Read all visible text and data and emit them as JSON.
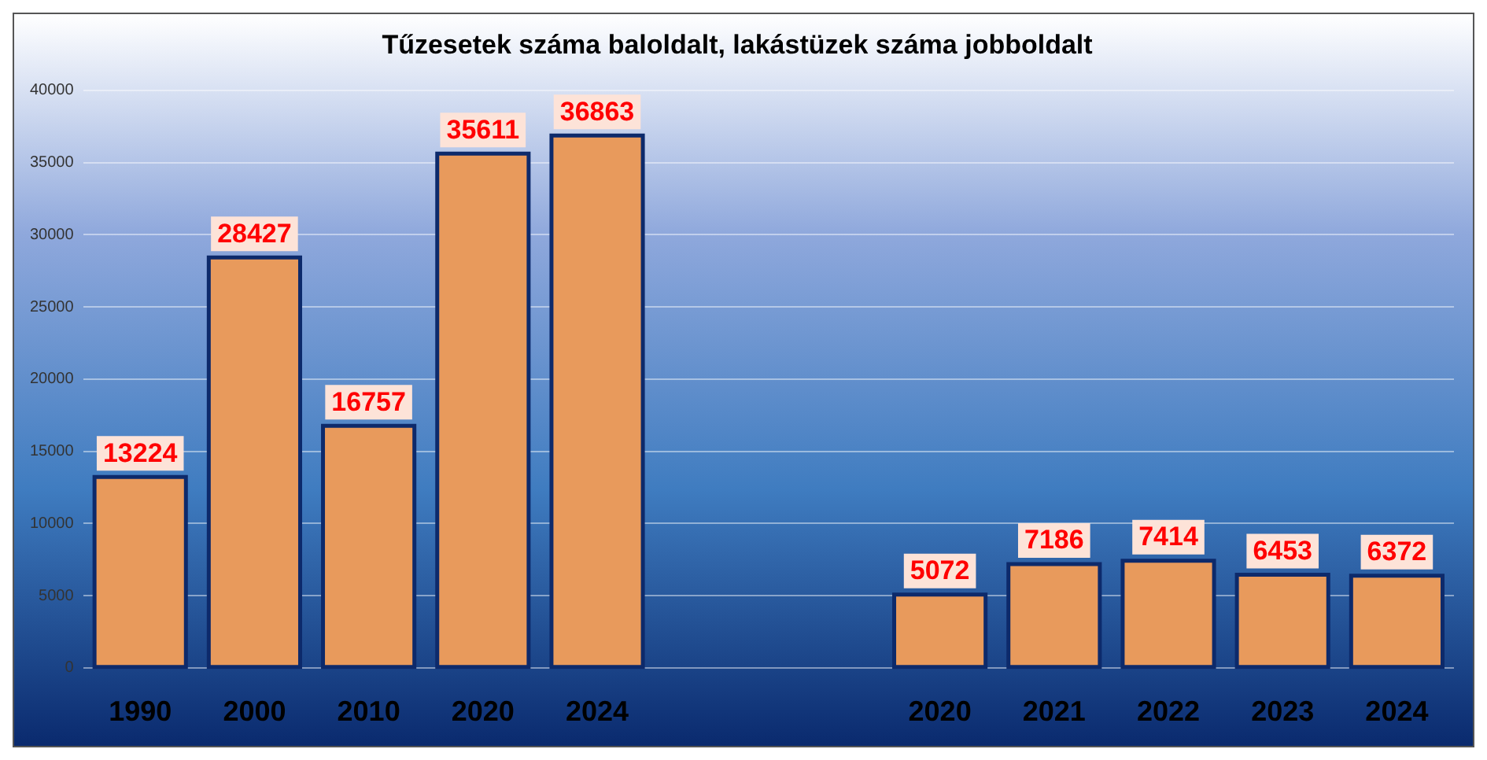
{
  "chart_data": {
    "type": "bar",
    "title": "Tűzesetek száma baloldalt, lakástüzek száma jobboldalt",
    "categories": [
      "1990",
      "2000",
      "2010",
      "2020",
      "2024",
      null,
      null,
      "2020",
      "2021",
      "2022",
      "2023",
      "2024"
    ],
    "series": [
      {
        "color": "#e89a5c",
        "values": [
          13224,
          28427,
          16757,
          35611,
          36863,
          null,
          null,
          5072,
          7186,
          7414,
          6453,
          6372
        ]
      }
    ],
    "ylim": [
      0,
      40000
    ],
    "yticks": [
      0,
      5000,
      10000,
      15000,
      20000,
      25000,
      30000,
      35000,
      40000
    ],
    "grid": "y",
    "data_labels": true,
    "legend": false
  }
}
